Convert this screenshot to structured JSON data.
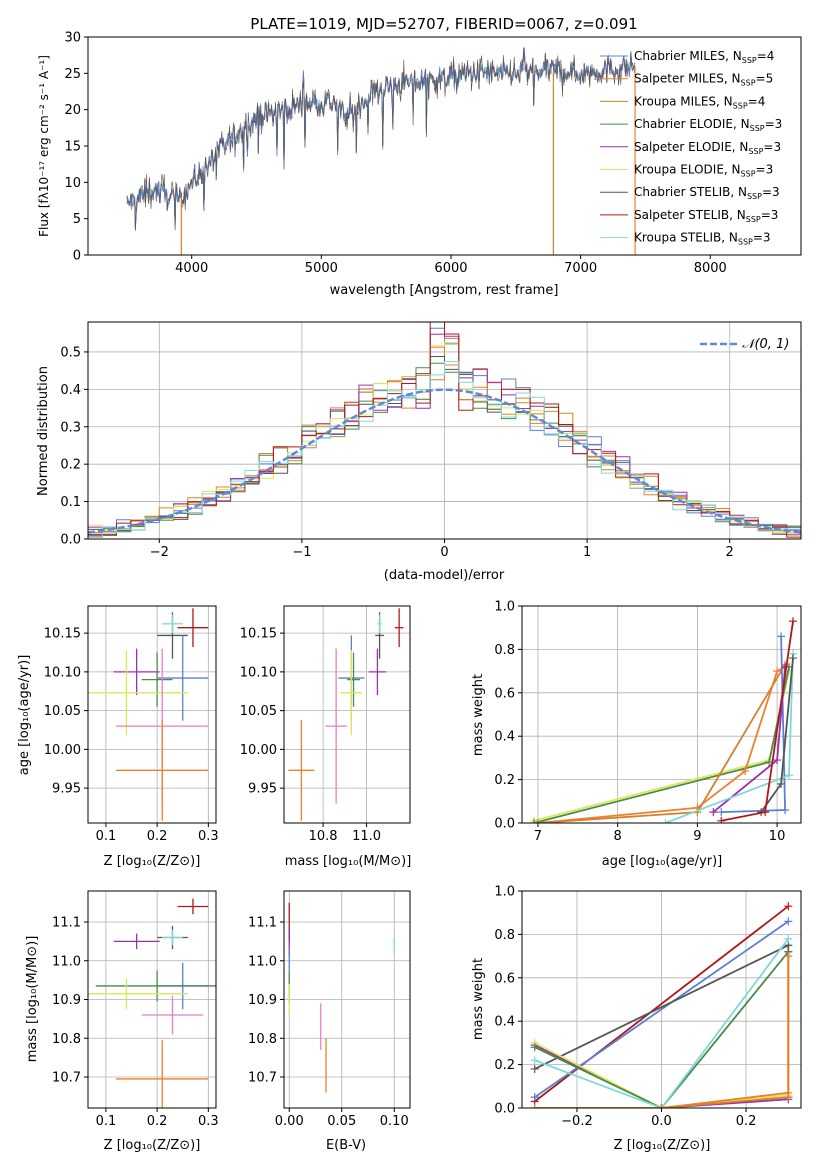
{
  "colors": {
    "chabrier_miles": "#5b7fd6",
    "salpeter_miles": "#f07f2a",
    "kroupa_miles": "#d6802b",
    "chabrier_elodie": "#4a8a4a",
    "salpeter_elodie": "#9b2fb0",
    "kroupa_elodie": "#d8e85a",
    "chabrier_stelib": "#555555",
    "salpeter_stelib": "#b01818",
    "kroupa_stelib": "#7fd8d8",
    "pink": "#e87fc4",
    "grid": "#b0b0b0",
    "normal_curve": "#5b8bd8"
  },
  "chart_data": [
    {
      "id": "spectrum",
      "type": "line",
      "title": "PLATE=1019, MJD=52707, FIBERID=0067, z=0.091",
      "xlabel": "wavelength [Angstrom, rest frame]",
      "ylabel": "Flux [fλ10⁻¹⁷ erg cm⁻² s⁻¹ A⁻¹]",
      "xlim": [
        3200,
        8700
      ],
      "ylim": [
        0,
        30
      ],
      "xticks": [
        4000,
        5000,
        6000,
        7000,
        8000
      ],
      "yticks": [
        0,
        5,
        10,
        15,
        20,
        25,
        30
      ],
      "legend_position": "top-right",
      "legend": [
        {
          "label": "Chabrier MILES, N",
          "sub": "SSP",
          "eq": "=4",
          "color_key": "chabrier_miles"
        },
        {
          "label": "Salpeter MILES, N",
          "sub": "SSP",
          "eq": "=5",
          "color_key": "salpeter_miles"
        },
        {
          "label": "Kroupa MILES, N",
          "sub": "SSP",
          "eq": "=4",
          "color_key": "kroupa_miles"
        },
        {
          "label": "Chabrier ELODIE, N",
          "sub": "SSP",
          "eq": "=3",
          "color_key": "chabrier_elodie"
        },
        {
          "label": "Salpeter ELODIE, N",
          "sub": "SSP",
          "eq": "=3",
          "color_key": "salpeter_elodie"
        },
        {
          "label": "Kroupa ELODIE, N",
          "sub": "SSP",
          "eq": "=3",
          "color_key": "kroupa_elodie"
        },
        {
          "label": "Chabrier STELIB, N",
          "sub": "SSP",
          "eq": "=3",
          "color_key": "chabrier_stelib"
        },
        {
          "label": "Salpeter STELIB, N",
          "sub": "SSP",
          "eq": "=3",
          "color_key": "salpeter_stelib"
        },
        {
          "label": "Kroupa STELIB, N",
          "sub": "SSP",
          "eq": "=3",
          "color_key": "kroupa_stelib"
        }
      ],
      "continuum": [
        [
          3500,
          7
        ],
        [
          3700,
          9
        ],
        [
          3900,
          7.5
        ],
        [
          4000,
          10
        ],
        [
          4100,
          12
        ],
        [
          4300,
          16
        ],
        [
          4500,
          19
        ],
        [
          4700,
          20
        ],
        [
          4900,
          21
        ],
        [
          5100,
          21
        ],
        [
          5200,
          19
        ],
        [
          5400,
          22.5
        ],
        [
          5600,
          23.5
        ],
        [
          5800,
          24
        ],
        [
          6000,
          24.5
        ],
        [
          6200,
          25
        ],
        [
          6500,
          25
        ],
        [
          6800,
          25.5
        ],
        [
          7000,
          25
        ],
        [
          7200,
          25.5
        ],
        [
          7400,
          26
        ]
      ],
      "drop_lines": [
        {
          "x": 3920,
          "color_key": "kroupa_miles"
        },
        {
          "x": 6790,
          "color_key": "kroupa_miles"
        },
        {
          "x": 7420,
          "color_key": "salpeter_miles"
        }
      ]
    },
    {
      "id": "residuals",
      "type": "histogram",
      "xlabel": "(data-model)/error",
      "ylabel": "Normed distribution",
      "xlim": [
        -2.5,
        2.5
      ],
      "ylim": [
        0,
        0.58
      ],
      "xticks": [
        -2,
        -1,
        0,
        1,
        2
      ],
      "yticks": [
        0.0,
        0.1,
        0.2,
        0.3,
        0.4,
        0.5
      ],
      "legend_label": "𝒩(0, 1)",
      "legend_position": "top-right",
      "bin_width": 0.1
    },
    {
      "id": "age_vs_z",
      "type": "errorbar",
      "xlabel": "Z [log₁₀(Z/Z⊙)]",
      "ylabel": "age  [log₁₀(age/yr)]",
      "xlim": [
        0.065,
        0.315
      ],
      "ylim": [
        9.905,
        10.185
      ],
      "xticks": [
        0.1,
        0.2,
        0.3
      ],
      "yticks": [
        9.95,
        10.0,
        10.05,
        10.1,
        10.15
      ],
      "points": [
        {
          "c": "salpeter_stelib",
          "x": 0.27,
          "xe": 0.03,
          "y": 10.157,
          "ye": 0.025
        },
        {
          "c": "chabrier_stelib",
          "x": 0.23,
          "xe": 0.03,
          "y": 10.147,
          "ye": 0.03
        },
        {
          "c": "kroupa_stelib",
          "x": 0.23,
          "xe": 0.02,
          "y": 10.162,
          "ye": 0.012
        },
        {
          "c": "chabrier_miles",
          "x": 0.25,
          "xe": 0.05,
          "y": 10.092,
          "ye": 0.055
        },
        {
          "c": "salpeter_elodie",
          "x": 0.16,
          "xe": 0.045,
          "y": 10.1,
          "ye": 0.03
        },
        {
          "c": "chabrier_elodie",
          "x": 0.2,
          "xe": 0.03,
          "y": 10.09,
          "ye": 0.035
        },
        {
          "c": "kroupa_elodie",
          "x": 0.14,
          "xe": 0.12,
          "y": 10.073,
          "ye": 0.055
        },
        {
          "c": "pink",
          "x": 0.21,
          "xe": 0.09,
          "y": 10.03,
          "ye": 0.1
        },
        {
          "c": "salpeter_miles",
          "x": 0.21,
          "xe": 0.09,
          "y": 9.973,
          "ye": 0.065
        }
      ]
    },
    {
      "id": "age_vs_mass",
      "type": "errorbar",
      "xlabel": "mass [log₁₀(M/M⊙)]",
      "ylabel": "",
      "xlim": [
        10.62,
        11.2
      ],
      "ylim": [
        9.905,
        10.185
      ],
      "xticks": [
        10.8,
        11.0
      ],
      "yticks": [
        9.95,
        10.0,
        10.05,
        10.1,
        10.15
      ],
      "points": [
        {
          "c": "salpeter_stelib",
          "x": 11.15,
          "xe": 0.02,
          "y": 10.157,
          "ye": 0.025
        },
        {
          "c": "chabrier_stelib",
          "x": 11.06,
          "xe": 0.02,
          "y": 10.147,
          "ye": 0.03
        },
        {
          "c": "kroupa_stelib",
          "x": 11.06,
          "xe": 0.01,
          "y": 10.162,
          "ye": 0.012
        },
        {
          "c": "chabrier_miles",
          "x": 10.93,
          "xe": 0.06,
          "y": 10.092,
          "ye": 0.055
        },
        {
          "c": "salpeter_elodie",
          "x": 11.05,
          "xe": 0.04,
          "y": 10.1,
          "ye": 0.03
        },
        {
          "c": "chabrier_elodie",
          "x": 10.94,
          "xe": 0.03,
          "y": 10.09,
          "ye": 0.035
        },
        {
          "c": "kroupa_elodie",
          "x": 10.93,
          "xe": 0.05,
          "y": 10.073,
          "ye": 0.055
        },
        {
          "c": "pink",
          "x": 10.86,
          "xe": 0.05,
          "y": 10.03,
          "ye": 0.1
        },
        {
          "c": "salpeter_miles",
          "x": 10.7,
          "xe": 0.06,
          "y": 9.973,
          "ye": 0.065
        }
      ]
    },
    {
      "id": "mw_vs_age",
      "type": "line",
      "xlabel": "age  [log₁₀(age/yr)]",
      "ylabel": "mass weight",
      "xlim": [
        6.8,
        10.3
      ],
      "ylim": [
        0,
        1.0
      ],
      "xticks": [
        7,
        8,
        9,
        10
      ],
      "yticks": [
        0.0,
        0.2,
        0.4,
        0.6,
        0.8,
        1.0
      ],
      "series": [
        {
          "c": "kroupa_elodie",
          "x": [
            6.95,
            9.9,
            10.15
          ],
          "y": [
            0.01,
            0.29,
            0.7
          ]
        },
        {
          "c": "chabrier_elodie",
          "x": [
            6.95,
            9.9,
            10.15
          ],
          "y": [
            0.0,
            0.28,
            0.72
          ]
        },
        {
          "c": "salpeter_miles",
          "x": [
            7.0,
            9.0,
            9.6,
            10.0,
            10.1
          ],
          "y": [
            0.0,
            0.07,
            0.24,
            0.7,
            0.72
          ]
        },
        {
          "c": "kroupa_miles",
          "x": [
            7.0,
            9.0,
            10.1
          ],
          "y": [
            0.0,
            0.05,
            0.73
          ]
        },
        {
          "c": "chabrier_miles",
          "x": [
            9.3,
            10.1,
            10.05
          ],
          "y": [
            0.05,
            0.06,
            0.86
          ]
        },
        {
          "c": "salpeter_elodie",
          "x": [
            9.2,
            10.0,
            10.1
          ],
          "y": [
            0.05,
            0.29,
            0.72
          ]
        },
        {
          "c": "kroupa_stelib",
          "x": [
            8.6,
            10.15,
            10.2
          ],
          "y": [
            0.0,
            0.22,
            0.78
          ]
        },
        {
          "c": "chabrier_stelib",
          "x": [
            9.8,
            10.05,
            10.2
          ],
          "y": [
            0.05,
            0.18,
            0.76
          ]
        },
        {
          "c": "salpeter_stelib",
          "x": [
            9.3,
            9.85,
            10.2
          ],
          "y": [
            0.01,
            0.05,
            0.93
          ]
        }
      ]
    },
    {
      "id": "mass_vs_z",
      "type": "errorbar",
      "xlabel": "Z [log₁₀(Z/Z⊙)]",
      "ylabel": "mass [log₁₀(M/M⊙)]",
      "xlim": [
        0.065,
        0.315
      ],
      "ylim": [
        10.62,
        11.18
      ],
      "xticks": [
        0.1,
        0.2,
        0.3
      ],
      "yticks": [
        10.7,
        10.8,
        10.9,
        11.0,
        11.1
      ],
      "points": [
        {
          "c": "salpeter_stelib",
          "x": 0.27,
          "xe": 0.03,
          "y": 11.14,
          "ye": 0.02
        },
        {
          "c": "chabrier_stelib",
          "x": 0.23,
          "xe": 0.03,
          "y": 11.06,
          "ye": 0.03
        },
        {
          "c": "kroupa_stelib",
          "x": 0.23,
          "xe": 0.02,
          "y": 11.06,
          "ye": 0.02
        },
        {
          "c": "salpeter_elodie",
          "x": 0.16,
          "xe": 0.045,
          "y": 11.05,
          "ye": 0.02
        },
        {
          "c": "chabrier_miles",
          "x": 0.25,
          "xe": 0.05,
          "y": 10.935,
          "ye": 0.06
        },
        {
          "c": "chabrier_elodie",
          "x": 0.2,
          "xe": 0.12,
          "y": 10.935,
          "ye": 0.04
        },
        {
          "c": "kroupa_elodie",
          "x": 0.14,
          "xe": 0.12,
          "y": 10.915,
          "ye": 0.04
        },
        {
          "c": "pink",
          "x": 0.23,
          "xe": 0.06,
          "y": 10.86,
          "ye": 0.05
        },
        {
          "c": "salpeter_miles",
          "x": 0.21,
          "xe": 0.09,
          "y": 10.695,
          "ye": 0.1
        }
      ]
    },
    {
      "id": "mass_vs_ebv",
      "type": "errorbar",
      "xlabel": "E(B-V)",
      "ylabel": "",
      "xlim": [
        -0.005,
        0.115
      ],
      "ylim": [
        10.62,
        11.18
      ],
      "xticks": [
        0.0,
        0.05,
        0.1
      ],
      "yticks": [
        10.7,
        10.8,
        10.9,
        11.0,
        11.1
      ],
      "points": [
        {
          "c": "salpeter_stelib",
          "x": 0.0,
          "xe": 0,
          "y": 11.1,
          "ye": 0.05
        },
        {
          "c": "salpeter_elodie",
          "x": 0.0,
          "xe": 0,
          "y": 11.05,
          "ye": 0.04
        },
        {
          "c": "chabrier_miles",
          "x": 0.0,
          "xe": 0,
          "y": 11.0,
          "ye": 0.03
        },
        {
          "c": "chabrier_elodie",
          "x": 0.0,
          "xe": 0,
          "y": 10.93,
          "ye": 0.04
        },
        {
          "c": "kroupa_elodie",
          "x": 0.0,
          "xe": 0,
          "y": 10.9,
          "ye": 0.04
        },
        {
          "c": "pink",
          "x": 0.03,
          "xe": 0,
          "y": 10.83,
          "ye": 0.06
        },
        {
          "c": "salpeter_miles",
          "x": 0.035,
          "xe": 0,
          "y": 10.73,
          "ye": 0.07
        },
        {
          "c": "kroupa_stelib",
          "x": 0.1,
          "xe": 0,
          "y": 11.04,
          "ye": 0.02
        }
      ]
    },
    {
      "id": "mw_vs_z",
      "type": "line",
      "xlabel": "Z [log₁₀(Z/Z⊙)]",
      "ylabel": "mass weight",
      "xlim": [
        -0.33,
        0.33
      ],
      "ylim": [
        0,
        1.0
      ],
      "xticks": [
        -0.2,
        0.0,
        0.2
      ],
      "yticks": [
        0.0,
        0.2,
        0.4,
        0.6,
        0.8,
        1.0
      ],
      "series": [
        {
          "c": "salpeter_stelib",
          "x": [
            -0.3,
            0.3
          ],
          "y": [
            0.03,
            0.93
          ]
        },
        {
          "c": "chabrier_miles",
          "x": [
            -0.3,
            0.3
          ],
          "y": [
            0.05,
            0.86
          ]
        },
        {
          "c": "chabrier_stelib",
          "x": [
            -0.3,
            0.3,
            0.3
          ],
          "y": [
            0.18,
            0.75,
            0.05
          ]
        },
        {
          "c": "salpeter_elodie",
          "x": [
            -0.3,
            0.0,
            0.3,
            0.3
          ],
          "y": [
            0.29,
            0.0,
            0.04,
            0.72
          ]
        },
        {
          "c": "kroupa_elodie",
          "x": [
            -0.3,
            0.0,
            0.3,
            0.3
          ],
          "y": [
            0.3,
            0.0,
            0.06,
            0.7
          ]
        },
        {
          "c": "chabrier_elodie",
          "x": [
            -0.3,
            0.0,
            0.3
          ],
          "y": [
            0.28,
            0.0,
            0.72
          ]
        },
        {
          "c": "kroupa_stelib",
          "x": [
            -0.3,
            0.0,
            0.3
          ],
          "y": [
            0.22,
            0.0,
            0.78
          ]
        },
        {
          "c": "salpeter_miles",
          "x": [
            0.0,
            0.3,
            0.3
          ],
          "y": [
            0.0,
            0.07,
            0.7
          ]
        },
        {
          "c": "kroupa_miles",
          "x": [
            -0.3,
            0.0,
            0.3
          ],
          "y": [
            0.0,
            0.0,
            0.05
          ]
        }
      ]
    }
  ]
}
